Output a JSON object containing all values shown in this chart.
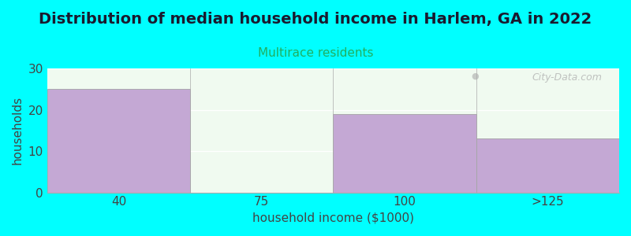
{
  "title": "Distribution of median household income in Harlem, GA in 2022",
  "subtitle": "Multirace residents",
  "xlabel": "household income ($1000)",
  "ylabel": "households",
  "background_color": "#00FFFF",
  "plot_bg_top": "#E8F5E8",
  "plot_bg_bottom": "#F5FFF5",
  "bar_color": "#C4A8D4",
  "bar_edge_color": "#999999",
  "categories": [
    "40",
    "75",
    "100",
    ">125"
  ],
  "values": [
    25,
    0,
    19,
    13
  ],
  "ylim": [
    0,
    30
  ],
  "yticks": [
    0,
    10,
    20,
    30
  ],
  "title_fontsize": 14,
  "subtitle_fontsize": 11,
  "subtitle_color": "#20B060",
  "axis_label_color": "#444444",
  "tick_color": "#444444",
  "watermark": "City-Data.com"
}
